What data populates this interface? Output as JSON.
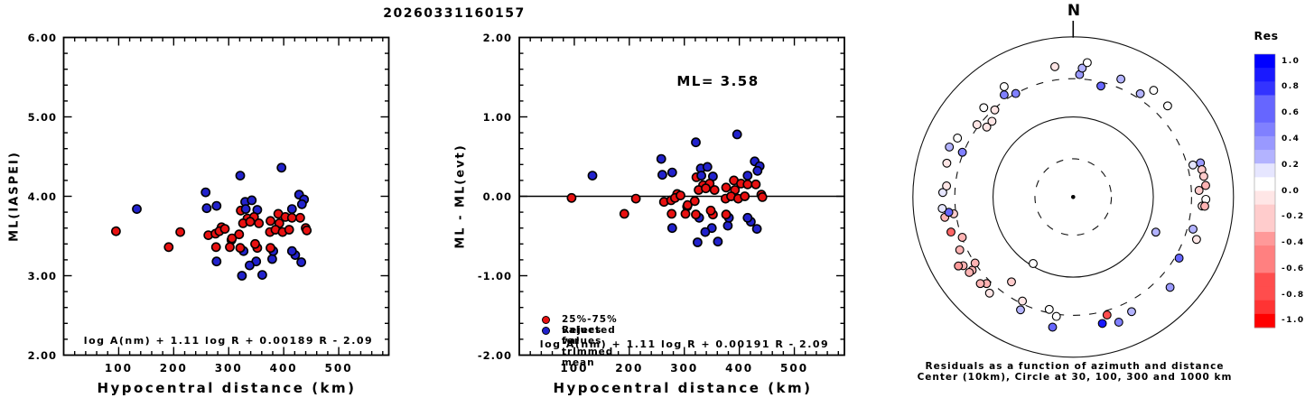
{
  "title": "20260331160157",
  "left_panel": {
    "ylabel": "ML(IASPEI)",
    "xlabel": "Hypocentral distance (km)",
    "equation": "log A(nm) + 1.11 log R + 0.00189 R - 2.09",
    "y_tick_labels": [
      "6.00",
      "5.00",
      "4.00",
      "3.00",
      "2.00"
    ],
    "x_tick_labels": [
      "100",
      "200",
      "300",
      "400",
      "500"
    ]
  },
  "middle_panel": {
    "ylabel": "ML - ML(evt)",
    "xlabel": "Hypocentral distance (km)",
    "equation": "log A(nm) + 1.11 log R + 0.00191 R - 2.09",
    "ml_annotation": "ML= 3.58",
    "y_tick_labels": [
      "2.00",
      "1.00",
      "0.00",
      "-1.00",
      "-2.00"
    ],
    "x_tick_labels": [
      "100",
      "200",
      "300",
      "400",
      "500"
    ],
    "legend": [
      {
        "label": "25%-75% values for trimmed mean",
        "color": "#e81111"
      },
      {
        "label": "Rejected values",
        "color": "#2222cc"
      }
    ]
  },
  "polar_panel": {
    "north_label": "N",
    "caption_line1": "Residuals as a function of azimuth and distance",
    "caption_line2": "Center (10km), Circle at 30, 100, 300 and 1000 km",
    "center_km": 10,
    "circles_km": [
      30,
      100,
      300,
      1000
    ]
  },
  "colorbar": {
    "title": "Res",
    "tick_labels": [
      "1.0",
      "0.8",
      "0.6",
      "0.4",
      "0.2",
      "0.0",
      "-0.2",
      "-0.4",
      "-0.6",
      "-0.8",
      "-1.0"
    ],
    "max_color": "#0000ff",
    "zero_color": "#ffffff",
    "min_color": "#ff0000"
  },
  "colors": {
    "kept_point": "#e81111",
    "rejected_point": "#2222cc",
    "frame": "#000000",
    "background": "#ffffff"
  },
  "chart_data": {
    "event_ml": 3.58,
    "stations": [
      [
        95,
        3.56,
        "k"
      ],
      [
        133,
        3.84,
        "r"
      ],
      [
        191,
        3.36,
        "k"
      ],
      [
        212,
        3.55,
        "k"
      ],
      [
        258,
        4.05,
        "r"
      ],
      [
        260,
        3.85,
        "r"
      ],
      [
        278,
        3.88,
        "r"
      ],
      [
        287,
        3.61,
        "k"
      ],
      [
        263,
        3.51,
        "k"
      ],
      [
        276,
        3.53,
        "k"
      ],
      [
        277,
        3.36,
        "k"
      ],
      [
        305,
        3.45,
        "k"
      ],
      [
        278,
        3.18,
        "r"
      ],
      [
        321,
        4.26,
        "r"
      ],
      [
        396,
        4.36,
        "r"
      ],
      [
        428,
        4.02,
        "r"
      ],
      [
        437,
        3.96,
        "r"
      ],
      [
        433,
        3.9,
        "r"
      ],
      [
        330,
        3.93,
        "r"
      ],
      [
        342,
        3.95,
        "r"
      ],
      [
        322,
        3.82,
        "k"
      ],
      [
        331,
        3.84,
        "r"
      ],
      [
        352,
        3.83,
        "r"
      ],
      [
        415,
        3.84,
        "r"
      ],
      [
        334,
        3.72,
        "k"
      ],
      [
        346,
        3.74,
        "k"
      ],
      [
        326,
        3.66,
        "k"
      ],
      [
        339,
        3.68,
        "k"
      ],
      [
        355,
        3.66,
        "k"
      ],
      [
        376,
        3.69,
        "k"
      ],
      [
        390,
        3.78,
        "k"
      ],
      [
        403,
        3.74,
        "k"
      ],
      [
        415,
        3.73,
        "k"
      ],
      [
        392,
        3.66,
        "k"
      ],
      [
        430,
        3.73,
        "k"
      ],
      [
        283,
        3.56,
        "k"
      ],
      [
        293,
        3.59,
        "k"
      ],
      [
        306,
        3.47,
        "k"
      ],
      [
        319,
        3.52,
        "k"
      ],
      [
        324,
        3.0,
        "r"
      ],
      [
        361,
        3.01,
        "r"
      ],
      [
        350,
        3.18,
        "r"
      ],
      [
        338,
        3.13,
        "r"
      ],
      [
        379,
        3.21,
        "r"
      ],
      [
        432,
        3.17,
        "r"
      ],
      [
        421,
        3.26,
        "r"
      ],
      [
        415,
        3.31,
        "r"
      ],
      [
        381,
        3.31,
        "r"
      ],
      [
        376,
        3.35,
        "k"
      ],
      [
        352,
        3.35,
        "k"
      ],
      [
        348,
        3.4,
        "k"
      ],
      [
        327,
        3.31,
        "r"
      ],
      [
        321,
        3.35,
        "k"
      ],
      [
        302,
        3.36,
        "k"
      ],
      [
        375,
        3.55,
        "k"
      ],
      [
        385,
        3.58,
        "k"
      ],
      [
        398,
        3.55,
        "k"
      ],
      [
        410,
        3.58,
        "k"
      ],
      [
        440,
        3.6,
        "k"
      ],
      [
        442,
        3.57,
        "k"
      ]
    ],
    "charts": [
      {
        "type": "scatter",
        "title": "",
        "xlabel": "Hypocentral distance (km)",
        "ylabel": "ML(IASPEI)",
        "xlim": [
          0,
          591
        ],
        "ylim": [
          2.0,
          6.0
        ],
        "x_ticks": [
          100,
          200,
          300,
          400,
          500
        ],
        "y_ticks": [
          2.0,
          3.0,
          4.0,
          5.0,
          6.0
        ],
        "x_minor_step": 20,
        "y_minor_step": 0.2,
        "points_from": "stations",
        "y_field": "ml",
        "annotation": "log A(nm) + 1.11 log R + 0.00189 R - 2.09"
      },
      {
        "type": "scatter",
        "title": "",
        "xlabel": "Hypocentral distance (km)",
        "ylabel": "ML - ML(evt)",
        "xlim": [
          0,
          591
        ],
        "ylim": [
          -2.0,
          2.0
        ],
        "x_ticks": [
          100,
          200,
          300,
          400,
          500
        ],
        "y_ticks": [
          -2.0,
          -1.0,
          0.0,
          1.0,
          2.0
        ],
        "x_minor_step": 20,
        "y_minor_step": 0.2,
        "points_from": "stations",
        "y_field": "ml_minus_event_ml",
        "zero_line": true,
        "annotation": "log A(nm) + 1.11 log R + 0.00191 R - 2.09",
        "ml_annotation": "ML= 3.58"
      },
      {
        "type": "polar_scatter",
        "title": "Residuals as a function of azimuth and distance",
        "subtitle": "Center (10km), Circle at 30, 100, 300 and 1000 km",
        "radial_scale": "log10(distance_km / 10)",
        "rings_km": [
          30,
          100,
          300,
          1000
        ],
        "color_scale": {
          "label": "Res",
          "min": -1.0,
          "max": 1.0
        },
        "points_az_km_res": [
          [
            3,
            340,
            0.35
          ],
          [
            4,
            410,
            0.3
          ],
          [
            6,
            486,
            0.0
          ],
          [
            14,
            268,
            0.55
          ],
          [
            22,
            388,
            0.25
          ],
          [
            33,
            345,
            0.3
          ],
          [
            37,
            465,
            0.0
          ],
          [
            46,
            435,
            0.0
          ],
          [
            75,
            352,
            0.05
          ],
          [
            75,
            440,
            0.4
          ],
          [
            78,
            438,
            -0.2
          ],
          [
            81,
            446,
            -0.25
          ],
          [
            85,
            456,
            -0.3
          ],
          [
            87,
            374,
            -0.2
          ],
          [
            91,
            452,
            0.0
          ],
          [
            94,
            410,
            -0.15
          ],
          [
            94,
            442,
            -0.35
          ],
          [
            105,
            353,
            0.25
          ],
          [
            109,
            424,
            -0.1
          ],
          [
            113,
            132,
            0.25
          ],
          [
            120,
            336,
            0.6
          ],
          [
            133,
            450,
            0.35
          ],
          [
            153,
            404,
            0.3
          ],
          [
            160,
            460,
            0.5
          ],
          [
            164,
            340,
            -0.7
          ],
          [
            167,
            417,
            0.85
          ],
          [
            188,
            320,
            -0.05
          ],
          [
            189,
            442,
            0.6
          ],
          [
            192,
            272,
            -0.05
          ],
          [
            205,
            358,
            0.3
          ],
          [
            206,
            279,
            -0.1
          ],
          [
            211,
            93,
            -0.02
          ],
          [
            216,
            204,
            -0.2
          ],
          [
            221,
            389,
            -0.15
          ],
          [
            225,
            337,
            -0.3
          ],
          [
            227,
            384,
            -0.35
          ],
          [
            234,
            361,
            -0.35
          ],
          [
            234,
            400,
            -0.3
          ],
          [
            236,
            299,
            -0.3
          ],
          [
            238,
            415,
            -0.35
          ],
          [
            239,
            469,
            -0.4
          ],
          [
            245,
            364,
            -0.35
          ],
          [
            250,
            297,
            -0.3
          ],
          [
            254,
            385,
            -0.65
          ],
          [
            261,
            418,
            -0.3
          ],
          [
            262,
            320,
            -0.2
          ],
          [
            263,
            366,
            0.55
          ],
          [
            265,
            437,
            0.1
          ],
          [
            272,
            425,
            0.1
          ],
          [
            275,
            385,
            -0.1
          ],
          [
            285,
            428,
            -0.08
          ],
          [
            292,
            310,
            0.5
          ],
          [
            292,
            464,
            0.3
          ],
          [
            297,
            417,
            0.0
          ],
          [
            307,
            318,
            -0.1
          ],
          [
            309,
            244,
            -0.15
          ],
          [
            313,
            243,
            -0.1
          ],
          [
            315,
            378,
            0.0
          ],
          [
            318,
            290,
            -0.15
          ],
          [
            326,
            346,
            0.5
          ],
          [
            328,
            421,
            0.0
          ],
          [
            331,
            300,
            0.5
          ],
          [
            352,
            440,
            -0.1
          ]
        ]
      }
    ]
  }
}
